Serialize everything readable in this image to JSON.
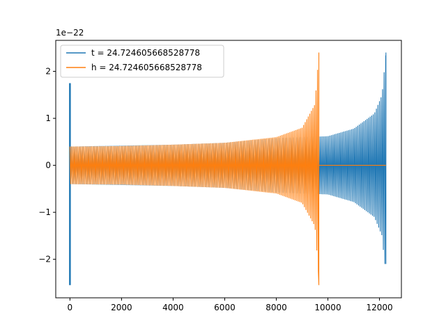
{
  "chart_data": {
    "type": "line",
    "title": "",
    "xlabel": "",
    "ylabel": "",
    "xlim": [
      -550,
      12850
    ],
    "ylim": [
      -2.82,
      2.66
    ],
    "y_offset_label": "1e−22",
    "x_ticks": [
      0,
      2000,
      4000,
      6000,
      8000,
      10000,
      12000
    ],
    "x_tick_labels": [
      "0",
      "2000",
      "4000",
      "6000",
      "8000",
      "10000",
      "12000"
    ],
    "y_ticks": [
      -2,
      -1,
      0,
      1,
      2
    ],
    "y_tick_labels": [
      "−2",
      "−1",
      "0",
      "1",
      "2"
    ],
    "grid": false,
    "legend_position": "top-left",
    "series": [
      {
        "name": "t = 24.724605668528778",
        "color": "#1f77b4",
        "x_start": 0,
        "x_end": 12250,
        "envelope": [
          [
            0,
            0.4
          ],
          [
            2000,
            0.42
          ],
          [
            4000,
            0.44
          ],
          [
            6000,
            0.48
          ],
          [
            8000,
            0.58
          ],
          [
            10000,
            0.62
          ],
          [
            11000,
            0.78
          ],
          [
            11800,
            1.1
          ],
          [
            12100,
            1.5
          ],
          [
            12250,
            2.4
          ]
        ],
        "min_value": -2.1,
        "max_value": 2.4,
        "initial_spike": {
          "x": 0,
          "max": 1.75,
          "min": -2.55
        }
      },
      {
        "name": "h = 24.724605668528778",
        "color": "#ff7f0e",
        "x_start": 0,
        "x_end": 9650,
        "envelope": [
          [
            0,
            0.4
          ],
          [
            2000,
            0.41
          ],
          [
            4000,
            0.44
          ],
          [
            6000,
            0.48
          ],
          [
            8000,
            0.6
          ],
          [
            9000,
            0.8
          ],
          [
            9500,
            1.3
          ],
          [
            9650,
            2.4
          ]
        ],
        "min_value": -2.55,
        "max_value": 2.4,
        "flat_after": {
          "x_from": 9650,
          "x_to": 12250,
          "value": 0
        }
      }
    ]
  }
}
